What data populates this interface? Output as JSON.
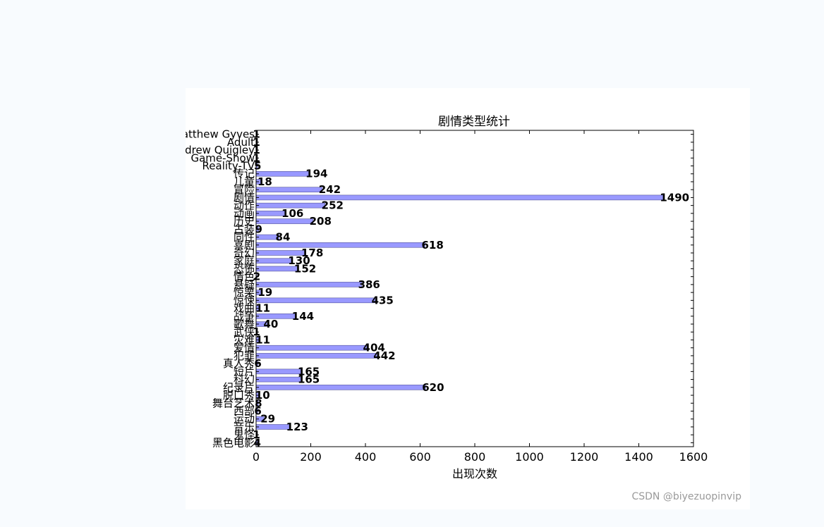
{
  "chart_data": {
    "type": "bar",
    "orientation": "horizontal",
    "title": "剧情类型统计",
    "xlabel": "出现次数",
    "ylabel": "",
    "xlim": [
      0,
      1600
    ],
    "xticks": [
      0,
      200,
      400,
      600,
      800,
      1000,
      1200,
      1400,
      1600
    ],
    "bar_color": "#9999ff",
    "bar_edge_color": "#555599",
    "categories": [
      "Matthew Gyves",
      "Adult",
      "Andrew Quigley",
      "Game-Show",
      "Reality-TV",
      "传记",
      "儿童",
      "冒险",
      "剧情",
      "动作",
      "动画",
      "历史",
      "古装",
      "同性",
      "喜剧",
      "奇幻",
      "家庭",
      "恐怖",
      "情色",
      "悬疑",
      "惊栗",
      "惊悚",
      "戏曲",
      "战争",
      "歌舞",
      "武侠",
      "灾难",
      "爱情",
      "犯罪",
      "真人秀",
      "短片",
      "科幻",
      "纪录片",
      "脱口秀",
      "舞台艺术",
      "西部",
      "运动",
      "音乐",
      "鬼怪",
      "黑色电影"
    ],
    "values": [
      1,
      1,
      1,
      1,
      5,
      194,
      18,
      242,
      1490,
      252,
      106,
      208,
      9,
      84,
      618,
      178,
      130,
      152,
      2,
      386,
      19,
      435,
      11,
      144,
      40,
      1,
      11,
      404,
      442,
      6,
      165,
      165,
      620,
      10,
      8,
      6,
      29,
      123,
      1,
      4
    ]
  },
  "watermark": "CSDN @biyezuopinvip"
}
